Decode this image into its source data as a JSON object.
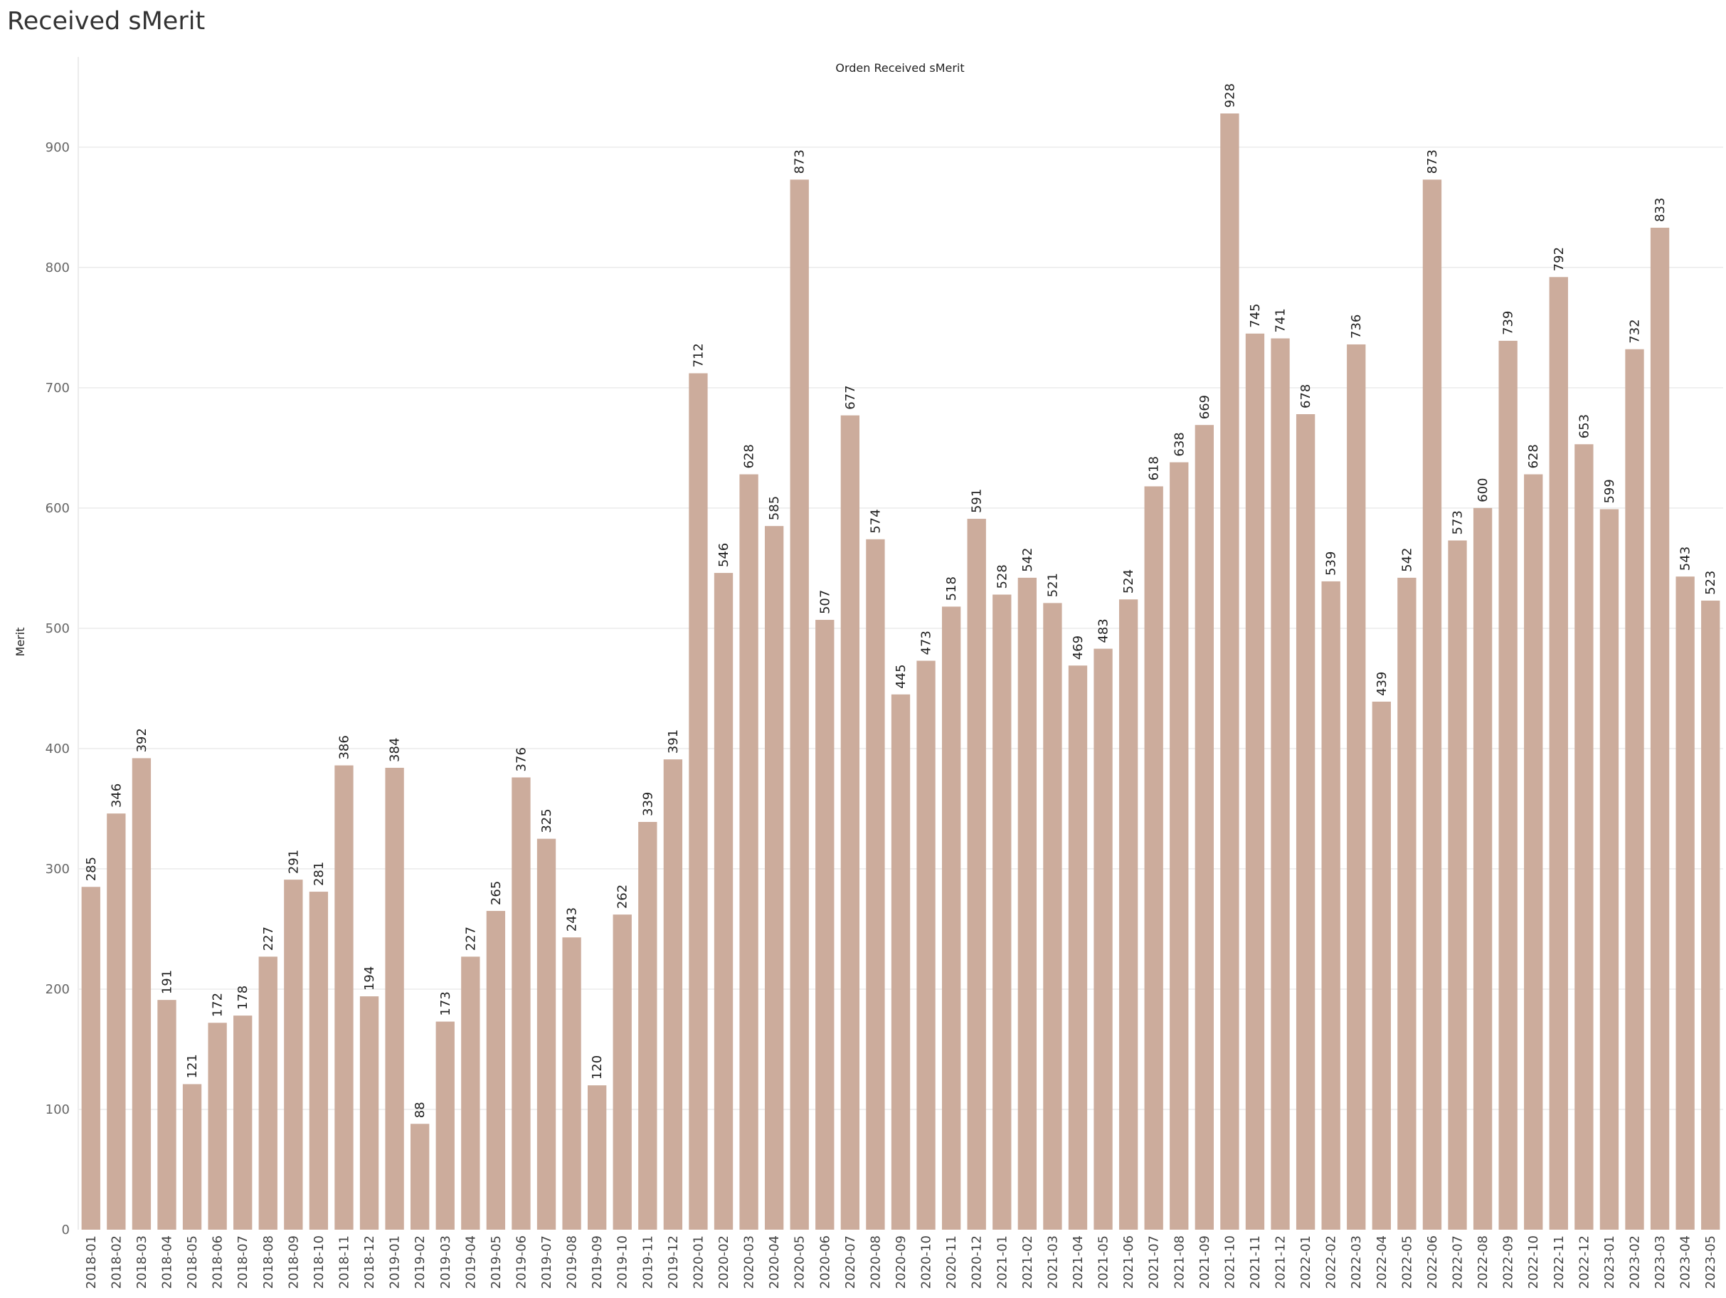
{
  "page": {
    "title": "Received sMerit"
  },
  "chart_data": {
    "type": "bar",
    "title": "Orden Received sMerit",
    "xlabel": "",
    "ylabel": "Merit",
    "ylim": [
      0,
      975
    ],
    "yticks": [
      0,
      100,
      200,
      300,
      400,
      500,
      600,
      700,
      800,
      900
    ],
    "grid": true,
    "bar_color": "#ccac9c",
    "categories": [
      "2018-01",
      "2018-02",
      "2018-03",
      "2018-04",
      "2018-05",
      "2018-06",
      "2018-07",
      "2018-08",
      "2018-09",
      "2018-10",
      "2018-11",
      "2018-12",
      "2019-01",
      "2019-02",
      "2019-03",
      "2019-04",
      "2019-05",
      "2019-06",
      "2019-07",
      "2019-08",
      "2019-09",
      "2019-10",
      "2019-11",
      "2019-12",
      "2020-01",
      "2020-02",
      "2020-03",
      "2020-04",
      "2020-05",
      "2020-06",
      "2020-07",
      "2020-08",
      "2020-09",
      "2020-10",
      "2020-11",
      "2020-12",
      "2021-01",
      "2021-02",
      "2021-03",
      "2021-04",
      "2021-05",
      "2021-06",
      "2021-07",
      "2021-08",
      "2021-09",
      "2021-10",
      "2021-11",
      "2021-12",
      "2022-01",
      "2022-02",
      "2022-03",
      "2022-04",
      "2022-05",
      "2022-06",
      "2022-07",
      "2022-08",
      "2022-09",
      "2022-10",
      "2022-11",
      "2022-12",
      "2023-01",
      "2023-02",
      "2023-03",
      "2023-04",
      "2023-05"
    ],
    "values": [
      285,
      346,
      392,
      191,
      121,
      172,
      178,
      227,
      291,
      281,
      386,
      194,
      384,
      88,
      173,
      227,
      265,
      376,
      325,
      243,
      120,
      262,
      339,
      391,
      712,
      546,
      628,
      585,
      873,
      507,
      677,
      574,
      445,
      473,
      518,
      591,
      528,
      542,
      521,
      469,
      483,
      524,
      618,
      638,
      669,
      928,
      745,
      741,
      678,
      539,
      736,
      439,
      542,
      873,
      573,
      600,
      739,
      628,
      792,
      653,
      599,
      732,
      833,
      543,
      523
    ]
  }
}
